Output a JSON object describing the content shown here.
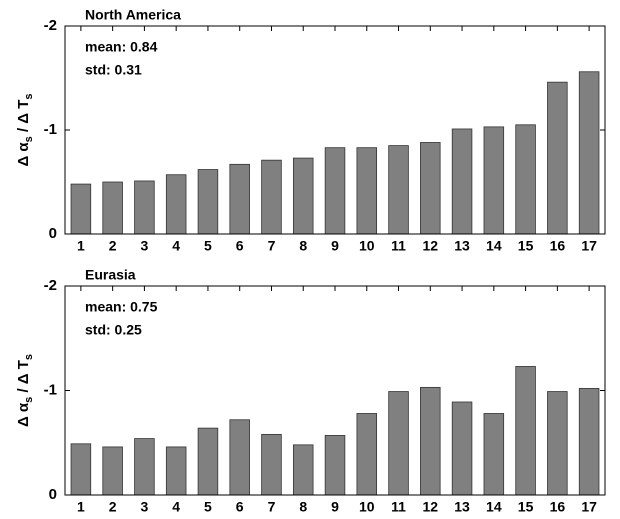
{
  "chart_data": [
    {
      "type": "bar",
      "title": "North America",
      "annotations": [
        "mean: 0.84",
        "std: 0.31"
      ],
      "ylabel": [
        "Δ α",
        "s",
        " / Δ T",
        "s"
      ],
      "categories": [
        "1",
        "2",
        "3",
        "4",
        "5",
        "6",
        "7",
        "8",
        "9",
        "10",
        "11",
        "12",
        "13",
        "14",
        "15",
        "16",
        "17"
      ],
      "values": [
        -0.48,
        -0.5,
        -0.51,
        -0.57,
        -0.62,
        -0.67,
        -0.71,
        -0.73,
        -0.83,
        -0.83,
        -0.85,
        -0.88,
        -1.01,
        -1.03,
        -1.05,
        -1.46,
        -1.56
      ],
      "color": "#808080",
      "ylim": [
        0,
        -2
      ],
      "yticks": [
        -2,
        -1,
        0
      ]
    },
    {
      "type": "bar",
      "title": "Eurasia",
      "annotations": [
        "mean: 0.75",
        "std: 0.25"
      ],
      "ylabel": [
        "Δ α",
        "s",
        " / Δ T",
        "s"
      ],
      "categories": [
        "1",
        "2",
        "3",
        "4",
        "5",
        "6",
        "7",
        "8",
        "9",
        "10",
        "11",
        "12",
        "13",
        "14",
        "15",
        "16",
        "17"
      ],
      "values": [
        -0.49,
        -0.46,
        -0.54,
        -0.46,
        -0.64,
        -0.72,
        -0.58,
        -0.48,
        -0.57,
        -0.78,
        -0.99,
        -1.03,
        -0.89,
        -0.78,
        -1.23,
        -0.99,
        -1.02
      ],
      "color": "#808080",
      "ylim": [
        0,
        -2
      ],
      "yticks": [
        -2,
        -1,
        0
      ]
    }
  ]
}
